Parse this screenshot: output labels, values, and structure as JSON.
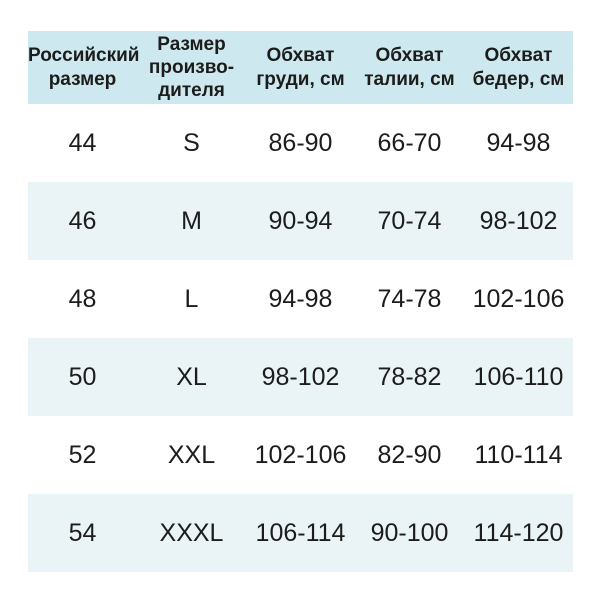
{
  "colors": {
    "header_bg": "#cde8ee",
    "stripe_bg": "#eaf4f7",
    "row_bg": "#ffffff",
    "text": "#1c1c1c",
    "page_bg": "#ffffff"
  },
  "table": {
    "headers": [
      "Российский\nразмер",
      "Размер\nпроизво-\nдителя",
      "Обхват\nгруди, см",
      "Обхват\nталии, см",
      "Обхват\nбедер, см"
    ],
    "rows": [
      [
        "44",
        "S",
        "86-90",
        "66-70",
        "94-98"
      ],
      [
        "46",
        "M",
        "90-94",
        "70-74",
        "98-102"
      ],
      [
        "48",
        "L",
        "94-98",
        "74-78",
        "102-106"
      ],
      [
        "50",
        "XL",
        "98-102",
        "78-82",
        "106-110"
      ],
      [
        "52",
        "XXL",
        "102-106",
        "82-90",
        "110-114"
      ],
      [
        "54",
        "XXXL",
        "106-114",
        "90-100",
        "114-120"
      ]
    ]
  },
  "chart_data": {
    "type": "table",
    "title": "",
    "columns": [
      "Российский размер",
      "Размер производителя",
      "Обхват груди, см",
      "Обхват талии, см",
      "Обхват бедер, см"
    ],
    "rows": [
      [
        "44",
        "S",
        "86-90",
        "66-70",
        "94-98"
      ],
      [
        "46",
        "M",
        "90-94",
        "70-74",
        "98-102"
      ],
      [
        "48",
        "L",
        "94-98",
        "74-78",
        "102-106"
      ],
      [
        "50",
        "XL",
        "98-102",
        "78-82",
        "106-110"
      ],
      [
        "52",
        "XXL",
        "102-106",
        "82-90",
        "110-114"
      ],
      [
        "54",
        "XXXL",
        "106-114",
        "90-100",
        "114-120"
      ]
    ],
    "layout": {
      "grid": false,
      "striped_rows": true,
      "stripe_pattern": "even data rows shaded"
    }
  }
}
